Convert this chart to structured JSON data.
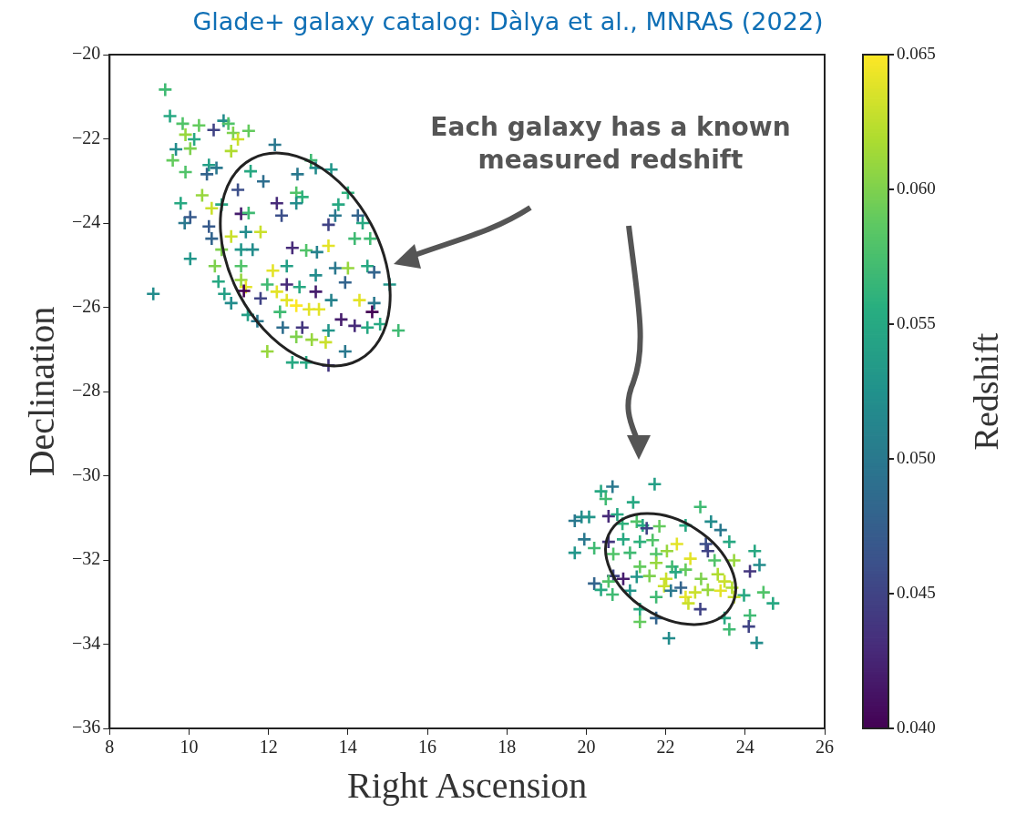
{
  "chart_data": {
    "type": "scatter",
    "title": "Glade+ galaxy catalog: Dàlya et al., MNRAS (2022)",
    "xlabel": "Right Ascension",
    "ylabel": "Declination",
    "clabel": "Redshift",
    "annotations": [
      "Each galaxy has a known measured redshift"
    ],
    "xlim": [
      8,
      26
    ],
    "xticks": [
      8,
      10,
      12,
      14,
      16,
      18,
      20,
      22,
      24,
      26
    ],
    "ylim": [
      -36,
      -20
    ],
    "yticks": [
      -36,
      -34,
      -32,
      -30,
      -28,
      -26,
      -24,
      -22,
      -20
    ],
    "clim": [
      0.04,
      0.065
    ],
    "cticks": [
      {
        "value": 0.04,
        "label": "0.040"
      },
      {
        "value": 0.045,
        "label": "0.045"
      },
      {
        "value": 0.05,
        "label": "0.050"
      },
      {
        "value": 0.055,
        "label": "0.055"
      },
      {
        "value": 0.06,
        "label": "0.060"
      },
      {
        "value": 0.065,
        "label": "0.065"
      }
    ],
    "marker": "cross",
    "legend": false,
    "x": [
      9.4,
      9.52,
      9.84,
      10.25,
      10.62,
      10.87,
      10.99,
      9.91,
      10.13,
      9.67,
      10.03,
      9.59,
      11.11,
      11.5,
      11.23,
      12.16,
      11.06,
      13.07,
      13.58,
      10.5,
      10.45,
      9.91,
      10.69,
      11.55,
      11.87,
      11.23,
      12.73,
      12.7,
      12.85,
      13.19,
      14.0,
      10.33,
      10.57,
      10.82,
      9.79,
      9.89,
      10.03,
      11.31,
      11.5,
      12.21,
      12.33,
      12.7,
      13.76,
      13.68,
      13.51,
      14.25,
      14.37,
      10.5,
      10.57,
      11.06,
      11.43,
      11.8,
      10.82,
      11.31,
      11.6,
      10.03,
      12.6,
      12.95,
      13.22,
      13.51,
      14.17,
      14.56,
      10.65,
      11.31,
      12.11,
      12.46,
      12.46,
      12.78,
      13.19,
      13.68,
      14.0,
      14.49,
      14.66,
      15.05,
      9.1,
      10.74,
      11.31,
      11.43,
      11.38,
      10.89,
      11.06,
      11.8,
      11.97,
      12.21,
      12.46,
      12.7,
      13.02,
      13.27,
      13.19,
      13.58,
      13.93,
      14.29,
      14.66,
      14.61,
      14.81,
      15.27,
      11.48,
      11.72,
      12.29,
      12.36,
      12.85,
      13.51,
      13.83,
      14.17,
      14.49,
      12.7,
      13.09,
      13.44,
      11.97,
      12.6,
      12.95,
      13.51,
      13.93,
      21.72,
      20.66,
      20.37,
      20.49,
      21.18,
      19.88,
      19.71,
      20.07,
      20.56,
      20.78,
      20.91,
      21.27,
      21.42,
      21.84,
      21.52,
      22.5,
      22.87,
      23.14,
      23.38,
      19.95,
      20.2,
      19.71,
      20.56,
      20.93,
      21.35,
      21.67,
      22.28,
      23.01,
      23.6,
      20.68,
      21.1,
      21.76,
      22.03,
      22.62,
      23.06,
      23.23,
      23.72,
      24.24,
      24.36,
      24.12,
      21.35,
      21.76,
      22.16,
      22.5,
      20.68,
      20.93,
      20.2,
      20.56,
      21.27,
      21.59,
      22.01,
      22.25,
      22.89,
      23.31,
      23.48,
      23.67,
      23.97,
      20.37,
      20.66,
      21.1,
      21.76,
      21.96,
      22.13,
      22.38,
      22.5,
      22.74,
      23.06,
      23.38,
      23.72,
      24.46,
      24.7,
      21.35,
      22.57,
      22.87,
      21.35,
      21.76,
      23.48,
      24.12,
      24.09,
      23.6,
      22.08,
      24.29
    ],
    "values": [
      -20.83,
      -21.46,
      -21.64,
      -21.68,
      -21.79,
      -21.57,
      -21.64,
      -21.9,
      -22.01,
      -22.25,
      -22.23,
      -22.51,
      -21.86,
      -21.81,
      -22.01,
      -22.14,
      -22.29,
      -22.51,
      -22.73,
      -22.62,
      -22.84,
      -22.79,
      -22.69,
      -22.77,
      -23.01,
      -23.21,
      -22.84,
      -23.28,
      -23.38,
      -22.69,
      -23.28,
      -23.34,
      -23.65,
      -23.56,
      -23.53,
      -24.0,
      -23.86,
      -23.78,
      -23.76,
      -23.53,
      -23.82,
      -23.53,
      -23.56,
      -23.82,
      -24.04,
      -23.82,
      -24.0,
      -24.08,
      -24.37,
      -24.32,
      -24.21,
      -24.21,
      -24.63,
      -24.63,
      -24.63,
      -24.85,
      -24.59,
      -24.65,
      -24.69,
      -24.54,
      -24.37,
      -24.37,
      -25.02,
      -25.02,
      -25.13,
      -25.02,
      -25.46,
      -25.52,
      -25.24,
      -25.07,
      -25.07,
      -25.02,
      -25.17,
      -25.46,
      -25.68,
      -25.39,
      -25.35,
      -25.52,
      -25.61,
      -25.68,
      -25.9,
      -25.79,
      -25.46,
      -25.63,
      -25.83,
      -25.96,
      -26.05,
      -26.05,
      -25.63,
      -25.83,
      -25.41,
      -25.83,
      -25.9,
      -26.11,
      -26.4,
      -26.55,
      -26.18,
      -26.33,
      -26.11,
      -26.48,
      -26.48,
      -26.55,
      -26.29,
      -26.44,
      -26.48,
      -26.7,
      -26.77,
      -26.83,
      -27.05,
      -27.31,
      -27.31,
      -27.38,
      -27.05,
      -30.2,
      -30.26,
      -30.37,
      -30.55,
      -30.63,
      -30.98,
      -31.07,
      -30.98,
      -30.96,
      -30.92,
      -31.14,
      -31.09,
      -31.18,
      -31.2,
      -31.25,
      -31.18,
      -30.74,
      -31.09,
      -31.29,
      -31.51,
      -31.72,
      -31.83,
      -31.57,
      -31.51,
      -31.57,
      -31.53,
      -31.62,
      -31.62,
      -31.57,
      -31.86,
      -31.83,
      -31.86,
      -31.79,
      -31.97,
      -31.79,
      -32.01,
      -32.01,
      -31.79,
      -32.12,
      -32.27,
      -32.16,
      -32.07,
      -32.16,
      -32.23,
      -32.38,
      -32.45,
      -32.56,
      -32.51,
      -32.4,
      -32.38,
      -32.45,
      -32.29,
      -32.45,
      -32.34,
      -32.51,
      -32.66,
      -32.84,
      -32.71,
      -32.82,
      -32.73,
      -32.88,
      -32.62,
      -32.73,
      -32.66,
      -32.88,
      -32.77,
      -32.71,
      -32.73,
      -32.88,
      -32.77,
      -33.03,
      -33.17,
      -33.03,
      -33.17,
      -33.47,
      -33.38,
      -33.38,
      -33.32,
      -33.58,
      -33.65,
      -33.86,
      -33.97
    ],
    "cvalues": [
      0.057,
      0.055,
      0.058,
      0.059,
      0.045,
      0.052,
      0.058,
      0.061,
      0.055,
      0.052,
      0.06,
      0.059,
      0.06,
      0.059,
      0.063,
      0.05,
      0.062,
      0.057,
      0.053,
      0.054,
      0.048,
      0.058,
      0.05,
      0.055,
      0.049,
      0.046,
      0.05,
      0.058,
      0.056,
      0.052,
      0.056,
      0.061,
      0.063,
      0.055,
      0.055,
      0.05,
      0.047,
      0.042,
      0.057,
      0.043,
      0.046,
      0.052,
      0.055,
      0.05,
      0.045,
      0.048,
      0.055,
      0.047,
      0.048,
      0.063,
      0.052,
      0.063,
      0.06,
      0.053,
      0.052,
      0.053,
      0.043,
      0.058,
      0.051,
      0.064,
      0.057,
      0.057,
      0.06,
      0.058,
      0.064,
      0.054,
      0.043,
      0.055,
      0.052,
      0.05,
      0.061,
      0.055,
      0.048,
      0.053,
      0.052,
      0.055,
      0.061,
      0.064,
      0.04,
      0.054,
      0.052,
      0.045,
      0.057,
      0.064,
      0.064,
      0.065,
      0.064,
      0.064,
      0.042,
      0.051,
      0.048,
      0.064,
      0.05,
      0.04,
      0.055,
      0.057,
      0.054,
      0.05,
      0.057,
      0.049,
      0.044,
      0.053,
      0.042,
      0.043,
      0.055,
      0.06,
      0.061,
      0.063,
      0.061,
      0.055,
      0.055,
      0.044,
      0.05,
      0.054,
      0.05,
      0.055,
      0.057,
      0.055,
      0.052,
      0.05,
      0.053,
      0.043,
      0.055,
      0.056,
      0.058,
      0.055,
      0.059,
      0.045,
      0.055,
      0.057,
      0.052,
      0.05,
      0.05,
      0.057,
      0.053,
      0.044,
      0.055,
      0.056,
      0.058,
      0.064,
      0.046,
      0.055,
      0.058,
      0.057,
      0.058,
      0.061,
      0.064,
      0.045,
      0.058,
      0.061,
      0.055,
      0.052,
      0.044,
      0.059,
      0.061,
      0.057,
      0.059,
      0.045,
      0.042,
      0.048,
      0.058,
      0.053,
      0.06,
      0.063,
      0.055,
      0.06,
      0.062,
      0.063,
      0.062,
      0.055,
      0.055,
      0.057,
      0.053,
      0.057,
      0.063,
      0.05,
      0.048,
      0.064,
      0.063,
      0.061,
      0.064,
      0.063,
      0.058,
      0.055,
      0.055,
      0.063,
      0.045,
      0.059,
      0.048,
      0.055,
      0.057,
      0.045,
      0.057,
      0.052,
      0.052
    ]
  }
}
